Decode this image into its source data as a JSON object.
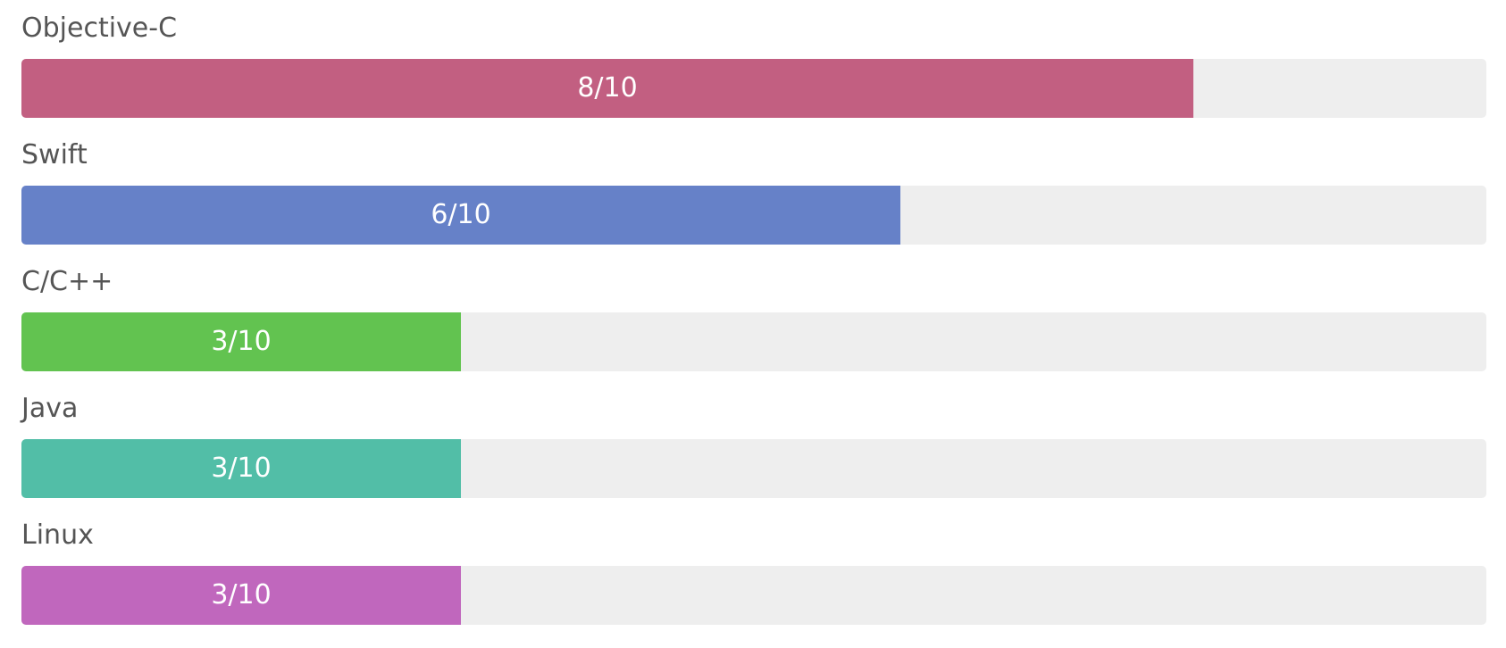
{
  "skills": [
    {
      "label": "Objective-C",
      "value_text": "8/10",
      "level": 0.8,
      "color": "#c25f81"
    },
    {
      "label": "Swift",
      "value_text": "6/10",
      "level": 0.6,
      "color": "#6681c8"
    },
    {
      "label": "C/C++",
      "value_text": "3/10",
      "level": 0.3,
      "color": "#62c350"
    },
    {
      "label": "Java",
      "value_text": "3/10",
      "level": 0.3,
      "color": "#52bea7"
    },
    {
      "label": "Linux",
      "value_text": "3/10",
      "level": 0.3,
      "color": "#c067bd"
    }
  ]
}
